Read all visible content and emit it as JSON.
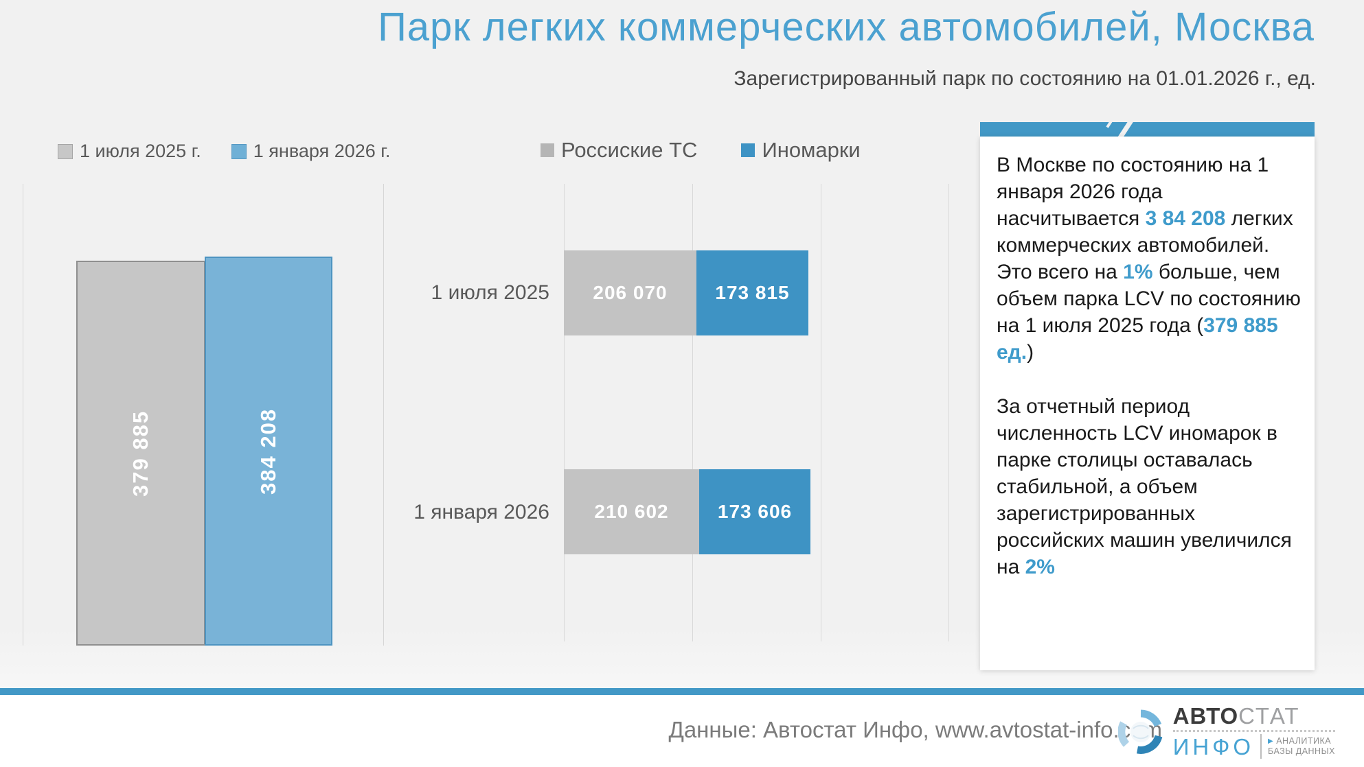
{
  "title": "Парк легких коммерческих автомобилей, Москва",
  "subtitle": "Зарегистрированный парк по состоянию на 01.01.2026 г., ед.",
  "colors": {
    "title_blue": "#4ba1d0",
    "accent_blue": "#3f9bcb",
    "bar_gray_left": "#c6c6c6",
    "bar_blue_left": "#79b3d7",
    "bar_gray_mid": "#c3c3c3",
    "bar_blue_mid": "#3e93c4",
    "band_blue": "#4298c6",
    "background": "#f1f1f1",
    "legend_text": "#595959",
    "body_text": "#1a1a1a",
    "footer_text": "#7b7b7b"
  },
  "chart_data": [
    {
      "type": "bar",
      "title": "",
      "categories": [
        "1 июля 2025 г.",
        "1 января 2026 г."
      ],
      "values": [
        379885,
        384208
      ],
      "value_labels": [
        "379 885",
        "384 208"
      ],
      "colors": [
        "#c6c6c6",
        "#79b3d7"
      ],
      "ylim": [
        0,
        450000
      ],
      "grid": false,
      "legend_position": "top",
      "value_label_style": "white bold, rotated 90° inside bar"
    },
    {
      "type": "bar-horizontal-stacked",
      "title": "",
      "categories": [
        "1 июля 2025",
        "1 января 2026"
      ],
      "series": [
        {
          "name": "Россиские ТС",
          "color": "#c3c3c3",
          "values": [
            206070,
            210602
          ],
          "value_labels": [
            "206 070",
            "210 602"
          ]
        },
        {
          "name": "Иномарки",
          "color": "#3e93c4",
          "values": [
            173815,
            173606
          ],
          "value_labels": [
            "173 815",
            "173 606"
          ]
        }
      ],
      "xlim": [
        0,
        600000
      ],
      "gridlines_x": [
        0,
        200000,
        400000,
        600000
      ],
      "grid": true,
      "legend_position": "top",
      "value_label_style": "white bold inside segment"
    }
  ],
  "insight_card": {
    "paragraphs": [
      {
        "segments": [
          {
            "text": "В Москве по состоянию на 1 января 2026 года насчитывается ",
            "accent": false
          },
          {
            "text": "3 84 208",
            "accent": true
          },
          {
            "text": " легких коммерческих автомобилей. Это всего на ",
            "accent": false
          },
          {
            "text": "1%",
            "accent": true
          },
          {
            "text": " больше, чем объем парка LCV по состоянию на 1 июля 2025 года (",
            "accent": false
          },
          {
            "text": "379 885 ед.",
            "accent": true
          },
          {
            "text": ")",
            "accent": false
          }
        ]
      },
      {
        "segments": [
          {
            "text": "За отчетный период численность LCV иномарок в парке столицы оставалась стабильной, а объем зарегистрированных российских машин увеличился на ",
            "accent": false
          },
          {
            "text": "2%",
            "accent": true
          }
        ]
      }
    ]
  },
  "footer": {
    "source_text": "Данные: Автостат Инфо, www.avtostat-info.com",
    "logo": {
      "brand_bold": "АВТО",
      "brand_light": "СТАТ",
      "brand_sub": "ИНФО",
      "triangle_icon": "▶",
      "tagline_line1": "АНАЛИТИКА",
      "tagline_line2": "БАЗЫ ДАННЫХ"
    }
  }
}
